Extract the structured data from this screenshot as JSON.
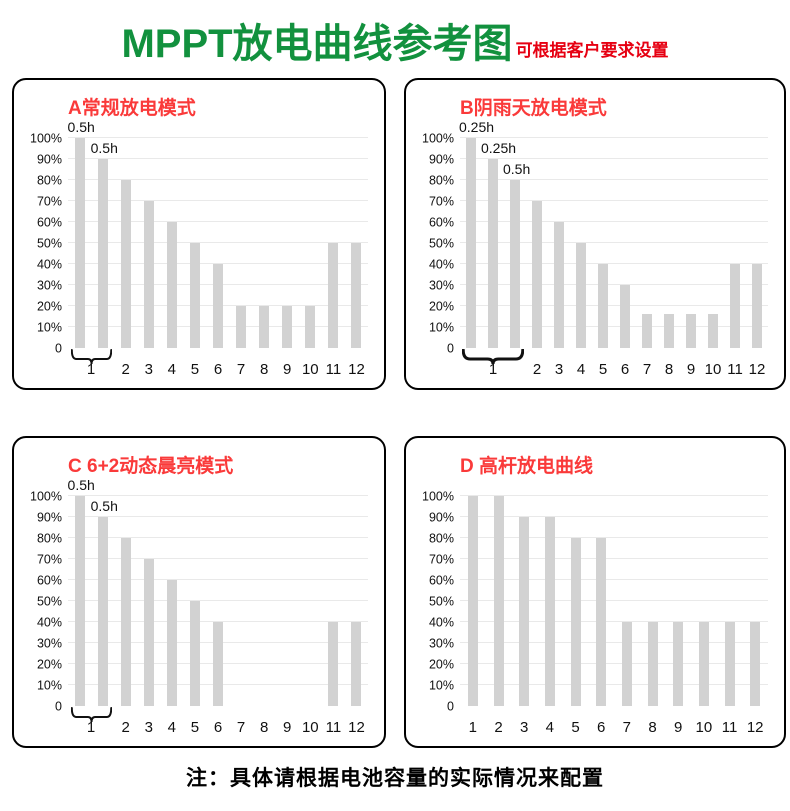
{
  "header": {
    "title": "MPPT放电曲线参考图",
    "subtitle": "可根据客户要求设置"
  },
  "footer": {
    "note": "注：具体请根据电池容量的实际情况来配置"
  },
  "colors": {
    "title_green": "#12913e",
    "subtitle_red": "#e60012",
    "panel_title_red": "#fa3a3a",
    "bar_fill": "#d2d2d2",
    "gridline": "#e9e9e9",
    "panel_border": "#000000",
    "axis_text": "#111111"
  },
  "y_axis": {
    "tick_labels": [
      "100%",
      "90%",
      "80%",
      "70%",
      "60%",
      "50%",
      "40%",
      "30%",
      "20%",
      "10%",
      "0"
    ],
    "min": 0,
    "max": 100,
    "step": 10,
    "unit": "%"
  },
  "chart_data": [
    {
      "panel": "A",
      "type": "bar",
      "title": "A常规放电模式",
      "ylim": [
        0,
        100
      ],
      "values": [
        100,
        90,
        80,
        70,
        60,
        50,
        40,
        20,
        20,
        20,
        20,
        50,
        50
      ],
      "hour1_sub_bars": 2,
      "x_labels": [
        "1",
        "2",
        "3",
        "4",
        "5",
        "6",
        "7",
        "8",
        "9",
        "10",
        "11",
        "12"
      ],
      "annotations": [
        {
          "bar_index": 0,
          "label": "0.5h"
        },
        {
          "bar_index": 1,
          "label": "0.5h"
        }
      ],
      "brace": true,
      "brace_weight": 2
    },
    {
      "panel": "B",
      "type": "bar",
      "title": "B阴雨天放电模式",
      "ylim": [
        0,
        100
      ],
      "values": [
        100,
        90,
        80,
        70,
        60,
        50,
        40,
        30,
        16,
        16,
        16,
        16,
        40,
        40
      ],
      "hour1_sub_bars": 3,
      "x_labels": [
        "1",
        "2",
        "3",
        "4",
        "5",
        "6",
        "7",
        "8",
        "9",
        "10",
        "11",
        "12"
      ],
      "annotations": [
        {
          "bar_index": 0,
          "label": "0.25h"
        },
        {
          "bar_index": 1,
          "label": "0.25h"
        },
        {
          "bar_index": 2,
          "label": "0.5h"
        }
      ],
      "brace": true,
      "brace_weight": 3
    },
    {
      "panel": "C",
      "type": "bar",
      "title": "C 6+2动态晨亮模式",
      "ylim": [
        0,
        100
      ],
      "values": [
        100,
        90,
        80,
        70,
        60,
        50,
        40,
        0,
        0,
        0,
        0,
        40,
        40
      ],
      "hour1_sub_bars": 2,
      "x_labels": [
        "1",
        "2",
        "3",
        "4",
        "5",
        "6",
        "7",
        "8",
        "9",
        "10",
        "11",
        "12"
      ],
      "annotations": [
        {
          "bar_index": 0,
          "label": "0.5h"
        },
        {
          "bar_index": 1,
          "label": "0.5h"
        }
      ],
      "brace": true,
      "brace_weight": 2
    },
    {
      "panel": "D",
      "type": "bar",
      "title": "D 高杆放电曲线",
      "ylim": [
        0,
        100
      ],
      "values": [
        100,
        100,
        90,
        90,
        80,
        80,
        40,
        40,
        40,
        40,
        40,
        40
      ],
      "hour1_sub_bars": 1,
      "x_labels": [
        "1",
        "2",
        "3",
        "4",
        "5",
        "6",
        "7",
        "8",
        "9",
        "10",
        "11",
        "12"
      ],
      "annotations": [],
      "brace": false,
      "brace_weight": 0
    }
  ]
}
